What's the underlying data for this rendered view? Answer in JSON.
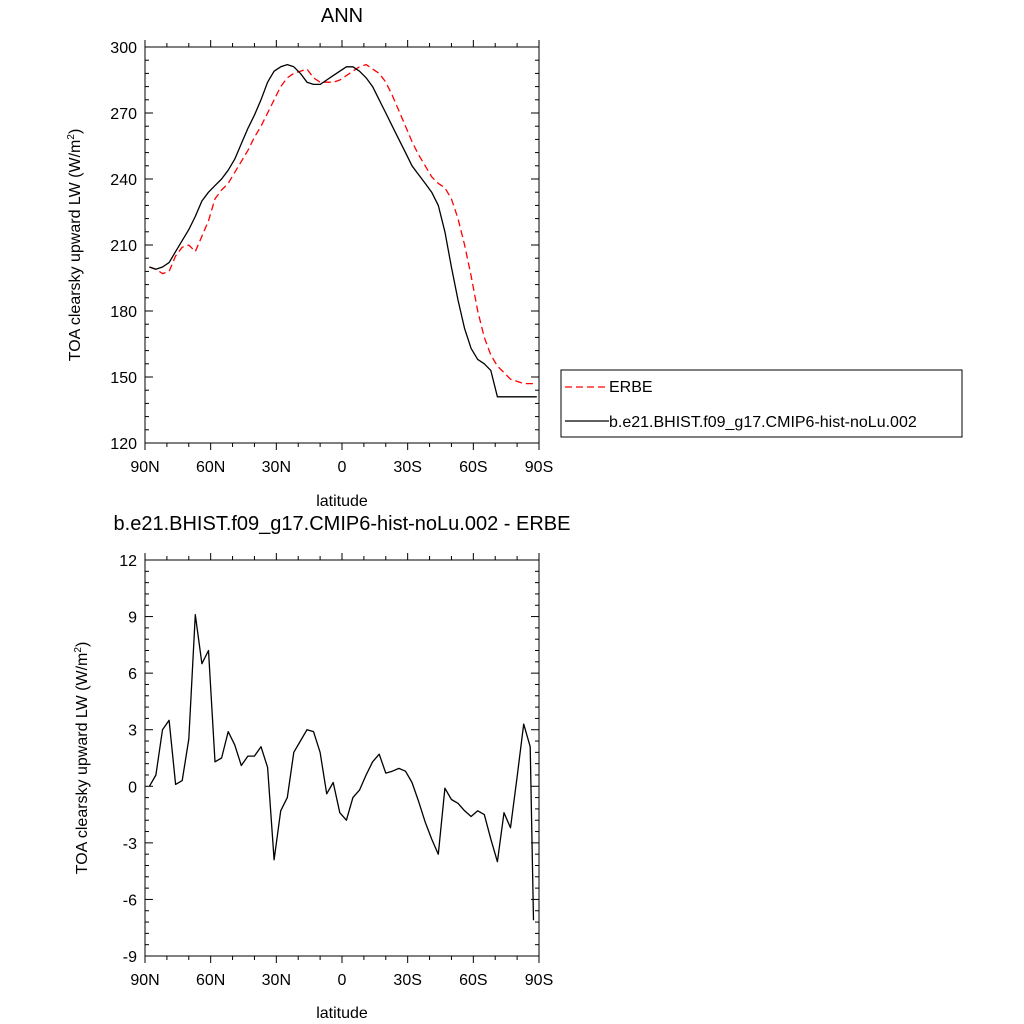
{
  "chart_data": [
    {
      "type": "line",
      "title": "ANN",
      "xlabel": "latitude",
      "ylabel_main": "TOA clearsky upward LW (W/m",
      "ylabel_sup": "2",
      "ylabel_end": ")",
      "xlim": [
        90,
        -90
      ],
      "ylim": [
        120,
        300
      ],
      "x_ticks": [
        90,
        60,
        30,
        0,
        -30,
        -60,
        -90
      ],
      "x_tick_labels": [
        "90N",
        "60N",
        "30N",
        "0",
        "30S",
        "60S",
        "90S"
      ],
      "y_ticks": [
        120,
        150,
        180,
        210,
        240,
        270,
        300
      ],
      "y_tick_labels": [
        "120",
        "150",
        "180",
        "210",
        "240",
        "270",
        "300"
      ],
      "legend_position": "right",
      "series": [
        {
          "name": "ERBE",
          "color": "#ff0000",
          "dash": "dashed",
          "x": [
            88,
            85,
            82,
            79,
            76,
            73,
            70,
            67,
            64,
            61,
            58,
            55,
            52,
            49,
            46,
            43,
            40,
            37,
            34,
            31,
            28,
            25,
            22,
            19,
            16,
            13,
            10,
            7,
            4,
            1,
            -2,
            -5,
            -8,
            -11,
            -14,
            -17,
            -20,
            -23,
            -26,
            -29,
            -32,
            -35,
            -38,
            -41,
            -44,
            -47,
            -50,
            -53,
            -56,
            -59,
            -62,
            -65,
            -68,
            -71,
            -74,
            -77,
            -80,
            -83,
            -86,
            -89
          ],
          "y": [
            200,
            199,
            197,
            198,
            205,
            209,
            210,
            207,
            214,
            221,
            231,
            235,
            238,
            243,
            248,
            253,
            259,
            264,
            270,
            276,
            282,
            286,
            288,
            289,
            290,
            286,
            284,
            284,
            284,
            285,
            287,
            289,
            291,
            292,
            290,
            288,
            284,
            278,
            271,
            264,
            257,
            251,
            246,
            241,
            238,
            236,
            231,
            222,
            210,
            196,
            180,
            168,
            160,
            155,
            152,
            149,
            148,
            147,
            147,
            147
          ]
        },
        {
          "name": "b.e21.BHIST.f09_g17.CMIP6-hist-noLu.002",
          "color": "#000000",
          "dash": "solid",
          "x": [
            88,
            85,
            82,
            79,
            76,
            73,
            70,
            67,
            64,
            61,
            58,
            55,
            52,
            49,
            46,
            43,
            40,
            37,
            34,
            31,
            28,
            25,
            22,
            19,
            16,
            13,
            10,
            7,
            4,
            1,
            -2,
            -5,
            -8,
            -11,
            -14,
            -17,
            -20,
            -23,
            -26,
            -29,
            -32,
            -35,
            -38,
            -41,
            -44,
            -47,
            -50,
            -53,
            -56,
            -59,
            -62,
            -65,
            -68,
            -71,
            -74,
            -77,
            -80,
            -83,
            -86,
            -89
          ],
          "y": [
            200,
            199,
            200,
            202,
            207,
            212,
            217,
            223,
            230,
            234,
            237,
            240,
            244,
            249,
            256,
            263,
            269,
            276,
            284,
            289,
            291,
            292,
            291,
            288,
            284,
            283,
            283,
            285,
            287,
            289,
            291,
            291,
            289,
            286,
            282,
            276,
            270,
            264,
            258,
            252,
            246,
            242,
            238,
            234,
            228,
            216,
            200,
            185,
            172,
            163,
            158,
            156,
            153,
            141,
            141,
            141,
            141,
            141,
            141,
            141
          ]
        }
      ]
    },
    {
      "type": "line",
      "title": "b.e21.BHIST.f09_g17.CMIP6-hist-noLu.002 - ERBE",
      "xlabel": "latitude",
      "ylabel_main": "TOA clearsky upward LW (W/m",
      "ylabel_sup": "2",
      "ylabel_end": ")",
      "xlim": [
        90,
        -90
      ],
      "ylim": [
        -9,
        12
      ],
      "x_ticks": [
        90,
        60,
        30,
        0,
        -30,
        -60,
        -90
      ],
      "x_tick_labels": [
        "90N",
        "60N",
        "30N",
        "0",
        "30S",
        "60S",
        "90S"
      ],
      "y_ticks": [
        -9,
        -6,
        -3,
        0,
        3,
        6,
        9,
        12
      ],
      "y_tick_labels": [
        "-9",
        "-6",
        "-3",
        "0",
        "3",
        "6",
        "9",
        "12"
      ],
      "series": [
        {
          "color": "#000000",
          "dash": "solid",
          "x": [
            88,
            85,
            82,
            79,
            76,
            73,
            70,
            67,
            64,
            61,
            58,
            55,
            52,
            49,
            46,
            43,
            40,
            37,
            34,
            31,
            28,
            25,
            22,
            19,
            16,
            13,
            10,
            7,
            4,
            1,
            -2,
            -5,
            -8,
            -11,
            -14,
            -17,
            -20,
            -23,
            -26,
            -29,
            -32,
            -35,
            -38,
            -41,
            -44,
            -47,
            -50,
            -53,
            -56,
            -59,
            -62,
            -65,
            -68,
            -71,
            -74,
            -77,
            -80,
            -83,
            -86,
            -87.5
          ],
          "y": [
            0,
            0.6,
            3,
            3.5,
            0.1,
            0.3,
            2.5,
            9.1,
            6.5,
            7.2,
            1.3,
            1.5,
            2.9,
            2.2,
            1.1,
            1.6,
            1.6,
            2.1,
            1,
            -3.9,
            -1.3,
            -0.6,
            1.8,
            2.4,
            3,
            2.9,
            1.8,
            -0.4,
            0.2,
            -1.4,
            -1.8,
            -0.6,
            -0.2,
            0.6,
            1.3,
            1.7,
            0.7,
            0.8,
            0.95,
            0.8,
            0.2,
            -0.8,
            -1.9,
            -2.8,
            -3.6,
            -0.1,
            -0.7,
            -0.9,
            -1.3,
            -1.6,
            -1.3,
            -1.5,
            -2.8,
            -4.0,
            -1.4,
            -2.2,
            0.5,
            3.3,
            2.1,
            -7.1
          ]
        }
      ]
    }
  ]
}
